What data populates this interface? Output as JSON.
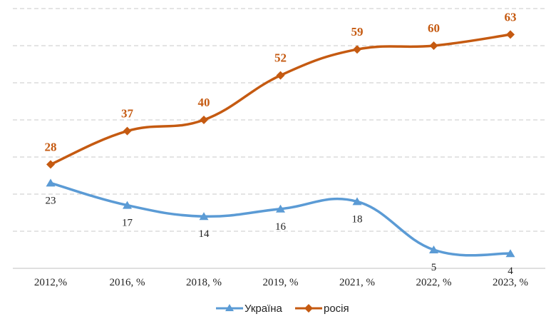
{
  "chart_data": {
    "type": "line",
    "title": "",
    "xlabel": "",
    "ylabel": "",
    "categories": [
      "2012,%",
      "2016, %",
      "2018, %",
      "2019, %",
      "2021, %",
      "2022, %",
      "2023, %"
    ],
    "ylim": [
      0,
      70
    ],
    "grid": true,
    "legend_position": "bottom",
    "series": [
      {
        "name": "Україна",
        "values": [
          23,
          17,
          14,
          16,
          18,
          5,
          4
        ],
        "color": "#5b9bd5",
        "marker": "triangle",
        "labels_bold": false
      },
      {
        "name": "росія",
        "values": [
          28,
          37,
          40,
          52,
          59,
          60,
          63
        ],
        "color": "#c55a11",
        "marker": "diamond",
        "labels_bold": true
      }
    ]
  }
}
